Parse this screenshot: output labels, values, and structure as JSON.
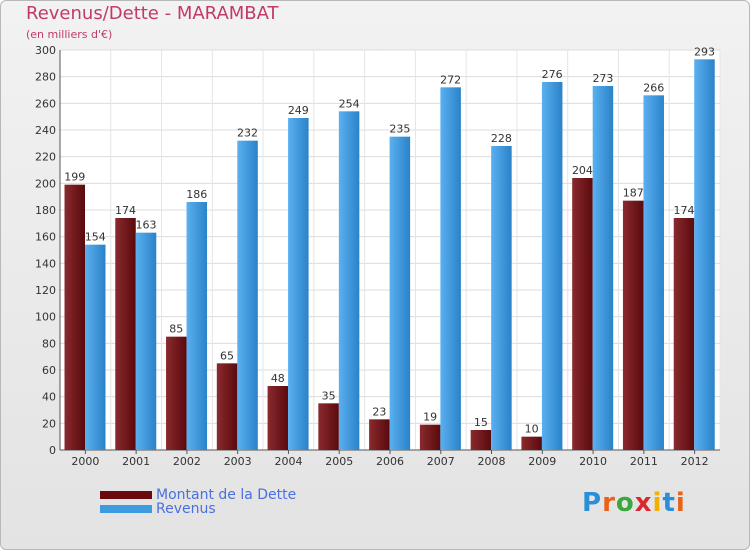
{
  "chart_title": "Revenus/Dette - MARAMBAT",
  "chart_subtitle": "(en milliers d'€)",
  "logo_text": "Proxiti",
  "colors": {
    "title": "#c03a6a",
    "dette": "#7a0e12",
    "revenus": "#3d9be0",
    "legend_text": "#4a6fe0"
  },
  "chart_data": {
    "type": "bar",
    "title": "Revenus/Dette - MARAMBAT",
    "subtitle": "(en milliers d'€)",
    "xlabel": "",
    "ylabel": "",
    "ylim": [
      0,
      300
    ],
    "yticks": [
      0,
      20,
      40,
      60,
      80,
      100,
      120,
      140,
      160,
      180,
      200,
      220,
      240,
      260,
      280,
      300
    ],
    "grid": true,
    "legend_position": "bottom-left",
    "categories": [
      "2000",
      "2001",
      "2002",
      "2003",
      "2004",
      "2005",
      "2006",
      "2007",
      "2008",
      "2009",
      "2010",
      "2011",
      "2012"
    ],
    "series": [
      {
        "name": "Montant de la Dette",
        "color": "#7a0e12",
        "values": [
          199,
          174,
          85,
          65,
          48,
          35,
          23,
          19,
          15,
          10,
          204,
          187,
          174
        ]
      },
      {
        "name": "Revenus",
        "color": "#3d9be0",
        "values": [
          154,
          163,
          186,
          232,
          249,
          254,
          235,
          272,
          228,
          276,
          273,
          266,
          293
        ]
      }
    ]
  }
}
